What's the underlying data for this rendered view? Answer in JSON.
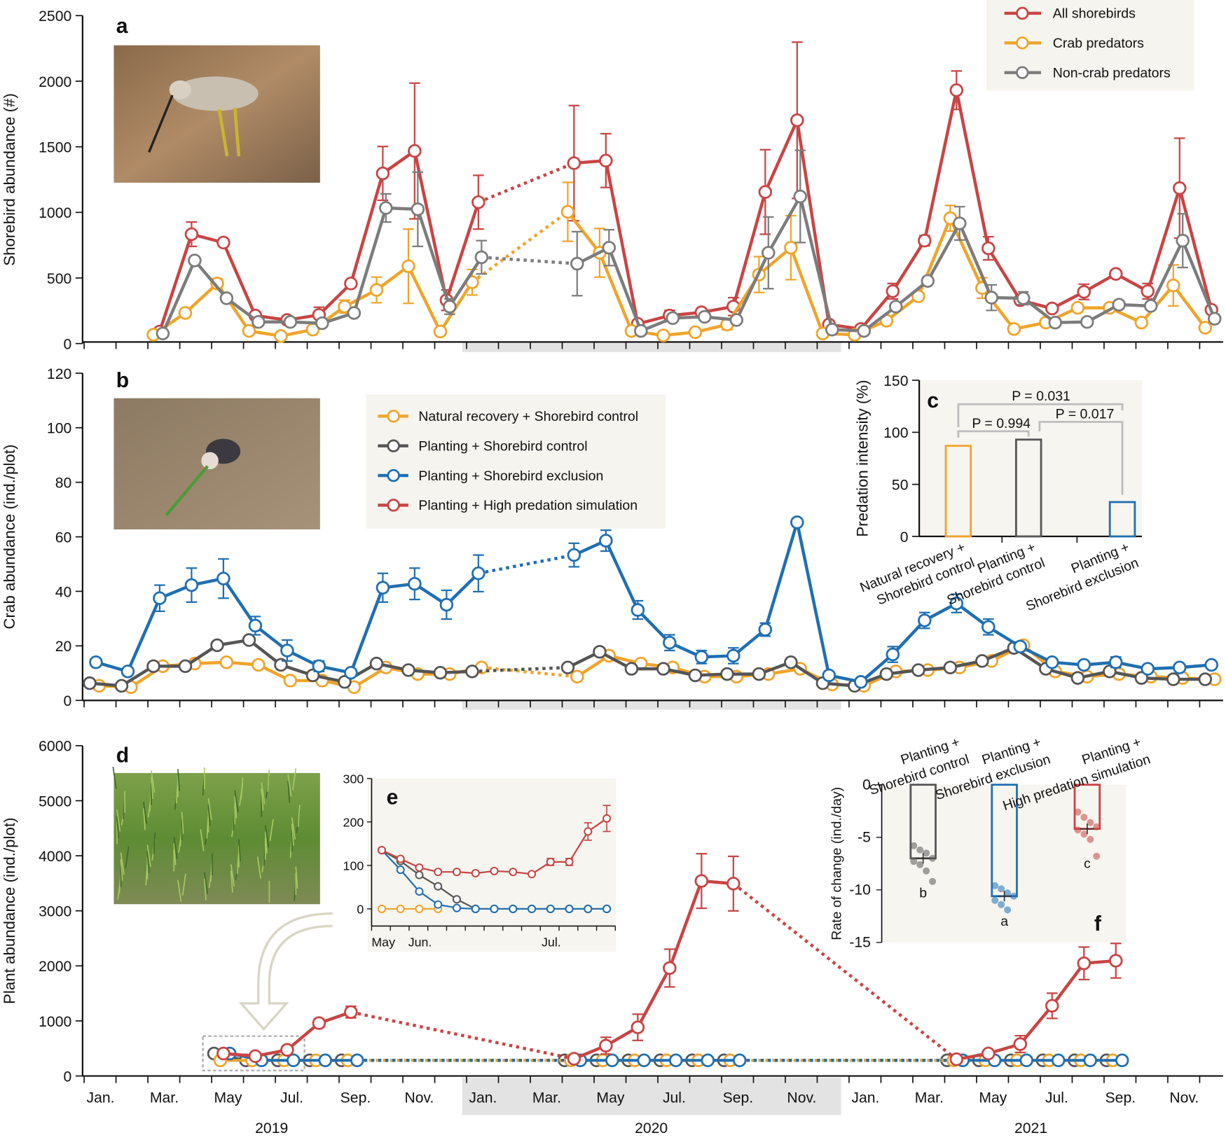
{
  "colors": {
    "red": "#c94444",
    "orange": "#f0a42a",
    "gray": "#7c7c7c",
    "dark": "#555555",
    "blue": "#1f6fb2",
    "band": "#e3e3e3",
    "panel_bg": "#f6f5ef"
  },
  "time_axis": {
    "months": [
      "Jan.",
      "Mar.",
      "May",
      "Jul.",
      "Sep.",
      "Nov.",
      "Jan.",
      "Mar.",
      "May",
      "Jul.",
      "Sep.",
      "Nov.",
      "Jan.",
      "Mar.",
      "May",
      "Jul.",
      "Sep.",
      "Nov."
    ],
    "years": [
      "2019",
      "2020",
      "2021"
    ]
  },
  "chart_data": [
    {
      "panel": "a",
      "type": "line",
      "ylabel": "Shorebird abundance  (#)",
      "ylim": [
        0,
        2500
      ],
      "yticks": [
        0,
        500,
        1000,
        1500,
        2000,
        2500
      ],
      "legend": "top-right",
      "series": [
        {
          "name": "All shorebirds",
          "color": "#c94444",
          "x": [
            "2019-03",
            "2019-04",
            "2019-05",
            "2019-06",
            "2019-07",
            "2019-08",
            "2019-09",
            "2019-10",
            "2019-11",
            "2019-12",
            "2020-01",
            "2020-04",
            "2020-05",
            "2020-06",
            "2020-07",
            "2020-08",
            "2020-09",
            "2020-10",
            "2020-11",
            "2020-12",
            "2021-01",
            "2021-02",
            "2021-03",
            "2021-04",
            "2021-05",
            "2021-06",
            "2021-07",
            "2021-08",
            "2021-09",
            "2021-10",
            "2021-11",
            "2021-12"
          ],
          "y": [
            45,
            805,
            740,
            170,
            135,
            175,
            420,
            1280,
            1455,
            290,
            1055,
            1360,
            1380,
            105,
            170,
            195,
            240,
            1135,
            1695,
            100,
            65,
            360,
            755,
            1930,
            695,
            290,
            225,
            355,
            495,
            360,
            1165,
            215
          ],
          "err": [
            0,
            95,
            0,
            0,
            30,
            60,
            0,
            210,
            530,
            80,
            210,
            450,
            210,
            0,
            40,
            30,
            70,
            330,
            610,
            30,
            0,
            60,
            40,
            150,
            90,
            0,
            0,
            60,
            0,
            60,
            390,
            0
          ]
        },
        {
          "name": "Crab predators",
          "color": "#f0a42a",
          "x": [
            "2019-03",
            "2019-04",
            "2019-05",
            "2019-06",
            "2019-07",
            "2019-08",
            "2019-09",
            "2019-10",
            "2019-11",
            "2019-12",
            "2020-01",
            "2020-04",
            "2020-05",
            "2020-06",
            "2020-07",
            "2020-08",
            "2020-09",
            "2020-10",
            "2020-11",
            "2020-12",
            "2021-01",
            "2021-02",
            "2021-03",
            "2021-04",
            "2021-05",
            "2021-06",
            "2021-07",
            "2021-08",
            "2021-09",
            "2021-10",
            "2021-11",
            "2021-12"
          ],
          "y": [
            20,
            190,
            420,
            50,
            10,
            60,
            240,
            370,
            555,
            45,
            430,
            980,
            660,
            50,
            15,
            40,
            100,
            490,
            700,
            30,
            20,
            130,
            320,
            930,
            385,
            65,
            115,
            230,
            230,
            115,
            405,
            75
          ],
          "err": [
            0,
            0,
            40,
            0,
            0,
            0,
            50,
            100,
            290,
            0,
            100,
            230,
            190,
            0,
            0,
            0,
            40,
            140,
            250,
            0,
            0,
            0,
            0,
            100,
            80,
            0,
            0,
            0,
            0,
            0,
            160,
            0
          ]
        },
        {
          "name": "Non-crab predators",
          "color": "#7c7c7c",
          "x": [
            "2019-03",
            "2019-04",
            "2019-05",
            "2019-06",
            "2019-07",
            "2019-08",
            "2019-09",
            "2019-10",
            "2019-11",
            "2019-12",
            "2020-01",
            "2020-04",
            "2020-05",
            "2020-06",
            "2020-07",
            "2020-08",
            "2020-09",
            "2020-10",
            "2020-11",
            "2020-12",
            "2021-01",
            "2021-02",
            "2021-03",
            "2021-04",
            "2021-05",
            "2021-06",
            "2021-07",
            "2021-08",
            "2021-09",
            "2021-10",
            "2021-11",
            "2021-12"
          ],
          "y": [
            30,
            600,
            305,
            120,
            120,
            110,
            190,
            1010,
            1000,
            240,
            625,
            575,
            700,
            50,
            150,
            160,
            135,
            660,
            1100,
            60,
            50,
            240,
            440,
            890,
            310,
            305,
            115,
            120,
            255,
            245,
            755,
            145
          ],
          "err": [
            0,
            0,
            0,
            0,
            0,
            0,
            0,
            110,
            290,
            60,
            130,
            250,
            140,
            0,
            0,
            0,
            0,
            280,
            360,
            0,
            0,
            0,
            0,
            130,
            100,
            50,
            0,
            0,
            0,
            0,
            210,
            0
          ]
        }
      ]
    },
    {
      "panel": "b",
      "type": "line",
      "ylabel": "Crab abundance (ind./plot)",
      "ylim": [
        0,
        120
      ],
      "yticks": [
        0,
        20,
        40,
        60,
        80,
        100,
        120
      ],
      "legend": "top-center",
      "legend_entries": [
        {
          "name": "Natural recovery + Shorebird control",
          "color": "#f0a42a"
        },
        {
          "name": "Planting + Shorebird control",
          "color": "#555555"
        },
        {
          "name": "Planting + Shorebird exclusion",
          "color": "#1f6fb2"
        },
        {
          "name": "Planting + High predation simulation",
          "color": "#c94444"
        }
      ],
      "x": [
        "2019-01",
        "2019-02",
        "2019-03",
        "2019-04",
        "2019-05",
        "2019-06",
        "2019-07",
        "2019-08",
        "2019-09",
        "2019-10",
        "2019-11",
        "2019-12",
        "2020-01",
        "2020-04",
        "2020-05",
        "2020-06",
        "2020-07",
        "2020-08",
        "2020-09",
        "2020-10",
        "2020-11",
        "2020-12",
        "2021-01",
        "2021-02",
        "2021-03",
        "2021-04",
        "2021-05",
        "2021-06",
        "2021-07",
        "2021-08",
        "2021-09",
        "2021-10",
        "2021-11",
        "2021-12"
      ],
      "series": [
        {
          "name": "Natural recovery + Shorebird control",
          "color": "#f0a42a",
          "y": [
            0.5,
            0,
            8,
            9,
            9.5,
            8.5,
            2.5,
            2.5,
            0,
            7.5,
            5,
            5,
            7.5,
            4,
            12,
            9,
            7.5,
            4,
            4,
            5,
            7,
            1,
            0.5,
            6,
            6.5,
            7.5,
            10,
            16,
            6,
            4,
            5,
            4,
            3.5,
            3
          ]
        },
        {
          "name": "Planting + Shorebird control",
          "color": "#555555",
          "y": [
            1.5,
            0.5,
            8,
            8,
            16,
            18,
            8.5,
            4.5,
            2,
            9,
            6.5,
            5.5,
            6,
            7.5,
            13.5,
            7,
            7,
            4.5,
            5,
            5,
            9.5,
            1.5,
            0.5,
            5,
            6.5,
            7.5,
            10,
            15,
            7,
            3.5,
            6,
            3.5,
            3,
            3
          ]
        },
        {
          "name": "Planting + Shorebird exclusion",
          "color": "#1f6fb2",
          "y": [
            9.5,
            6,
            34,
            39,
            41.5,
            23.5,
            14,
            8,
            5.5,
            38,
            39.5,
            31.5,
            43.5,
            50.5,
            56,
            29.5,
            17,
            11.5,
            12,
            22,
            63,
            4.5,
            2,
            12.5,
            25.5,
            32,
            23,
            15.5,
            9.5,
            8.5,
            9.5,
            7,
            7.5,
            8.5
          ],
          "err": [
            0,
            0,
            5,
            6.5,
            7.5,
            3.5,
            4,
            2,
            0,
            5.5,
            6,
            5.5,
            7,
            4.5,
            4,
            3.5,
            3,
            2.5,
            3,
            2.5,
            0,
            0,
            0,
            3,
            3,
            3.5,
            3,
            0,
            0,
            0,
            2,
            0,
            0,
            0
          ]
        }
      ]
    },
    {
      "panel": "c",
      "type": "bar",
      "ylabel": "Predation intensity (%)",
      "ylim": [
        0,
        150
      ],
      "yticks": [
        0,
        50,
        100,
        150
      ],
      "categories": [
        [
          "Natural recovery +",
          "Shorebird control"
        ],
        [
          "Planting +",
          "Shorebird control"
        ],
        [
          "Planting +",
          "Shorebird exclusion"
        ]
      ],
      "values": [
        87,
        93,
        33
      ],
      "colors": [
        "#f0a42a",
        "#555555",
        "#1f6fb2"
      ],
      "annotations": [
        "P = 0.031",
        "P = 0.994",
        "P = 0.017"
      ]
    },
    {
      "panel": "d",
      "type": "line",
      "ylabel": "Plant abundance (ind./plot)",
      "ylim": [
        0,
        6000
      ],
      "yticks": [
        0,
        1000,
        2000,
        3000,
        4000,
        5000,
        6000
      ],
      "series": [
        {
          "name": "Planting + High predation simulation",
          "color": "#c94444",
          "x": [
            "2019-05",
            "2019-06",
            "2019-07",
            "2019-08",
            "2019-09",
            "2020-04",
            "2020-05",
            "2020-06",
            "2020-07",
            "2020-08",
            "2020-09",
            "2021-04",
            "2021-05",
            "2021-06",
            "2021-07",
            "2021-08",
            "2021-09"
          ],
          "y": [
            130,
            80,
            200,
            710,
            920,
            30,
            280,
            630,
            1760,
            3420,
            3370,
            20,
            130,
            310,
            1040,
            1850,
            1900
          ],
          "err": [
            0,
            0,
            0,
            80,
            110,
            0,
            160,
            250,
            360,
            520,
            520,
            0,
            0,
            160,
            240,
            310,
            330
          ]
        },
        {
          "name": "Planting + Shorebird control",
          "color": "#555555",
          "x": [
            "2019-05",
            "2019-06",
            "2019-07",
            "2019-08",
            "2019-09",
            "2020-04",
            "2020-05",
            "2020-06",
            "2020-07",
            "2020-08",
            "2020-09",
            "2021-04",
            "2021-05",
            "2021-06",
            "2021-07",
            "2021-08",
            "2021-09"
          ],
          "y": [
            130,
            0,
            0,
            0,
            0,
            0,
            0,
            0,
            0,
            0,
            0,
            0,
            0,
            0,
            0,
            0,
            0
          ]
        },
        {
          "name": "Natural recovery + Shorebird control",
          "color": "#f0a42a",
          "x": [
            "2019-05",
            "2019-06",
            "2019-07",
            "2019-08",
            "2019-09",
            "2020-04",
            "2020-05",
            "2020-06",
            "2020-07",
            "2020-08",
            "2020-09",
            "2021-04",
            "2021-05",
            "2021-06",
            "2021-07",
            "2021-08",
            "2021-09"
          ],
          "y": [
            0,
            0,
            0,
            0,
            0,
            0,
            0,
            0,
            0,
            0,
            0,
            0,
            0,
            0,
            0,
            0,
            0
          ]
        },
        {
          "name": "Planting + Shorebird exclusion",
          "color": "#1f6fb2",
          "x": [
            "2019-05",
            "2019-06",
            "2019-07",
            "2019-08",
            "2019-09",
            "2020-04",
            "2020-05",
            "2020-06",
            "2020-07",
            "2020-08",
            "2020-09",
            "2021-04",
            "2021-05",
            "2021-06",
            "2021-07",
            "2021-08",
            "2021-09"
          ],
          "y": [
            130,
            0,
            0,
            0,
            0,
            0,
            0,
            0,
            0,
            0,
            0,
            0,
            0,
            0,
            0,
            0,
            0
          ]
        }
      ]
    },
    {
      "panel": "e",
      "type": "line",
      "ylim": [
        0,
        300
      ],
      "yticks": [
        0,
        100,
        200,
        300
      ],
      "xticks": [
        "May",
        "Jun.",
        "Jul."
      ],
      "series": [
        {
          "name": "Planting + High predation simulation",
          "color": "#c94444",
          "y": [
            135,
            115,
            95,
            85,
            85,
            82,
            87,
            85,
            80,
            108,
            108,
            178,
            208
          ],
          "err": [
            0,
            0,
            0,
            0,
            0,
            0,
            0,
            0,
            0,
            8,
            8,
            20,
            30
          ]
        },
        {
          "name": "Planting + Shorebird control",
          "color": "#555555",
          "y": [
            135,
            110,
            78,
            52,
            22,
            0,
            0,
            0,
            0,
            0,
            0,
            0,
            0
          ]
        },
        {
          "name": "Planting + Shorebird exclusion",
          "color": "#1f6fb2",
          "y": [
            135,
            90,
            40,
            10,
            2,
            0,
            0,
            0,
            0,
            0,
            0,
            0,
            0
          ]
        },
        {
          "name": "Natural recovery + Shorebird control",
          "color": "#f0a42a",
          "y": [
            0,
            0,
            0,
            0
          ]
        }
      ]
    },
    {
      "panel": "f",
      "type": "bar",
      "ylabel": "Rate of change (ind./day)",
      "ylim": [
        -15,
        0
      ],
      "yticks": [
        0,
        -5,
        -10,
        -15
      ],
      "categories": [
        [
          "Planting +",
          "Shorebird control"
        ],
        [
          "Planting +",
          "Shorebird exclusion"
        ],
        [
          "Planting +",
          "High predation simulation"
        ]
      ],
      "values": [
        -7,
        -10.6,
        -4.2
      ],
      "colors": [
        "#555555",
        "#1f6fb2",
        "#c94444"
      ],
      "letters": [
        "b",
        "a",
        "c"
      ],
      "points": [
        [
          -5.8,
          -6.2,
          -6.5,
          -7,
          -7.3,
          -7.6,
          -8.2,
          -9.2
        ],
        [
          -9.6,
          -9.9,
          -10.3,
          -10.6,
          -11,
          -11.4,
          -11.9
        ],
        [
          -2.6,
          -3.1,
          -3.6,
          -4,
          -4.3,
          -4.7,
          -5.2,
          -6.8
        ]
      ]
    }
  ]
}
